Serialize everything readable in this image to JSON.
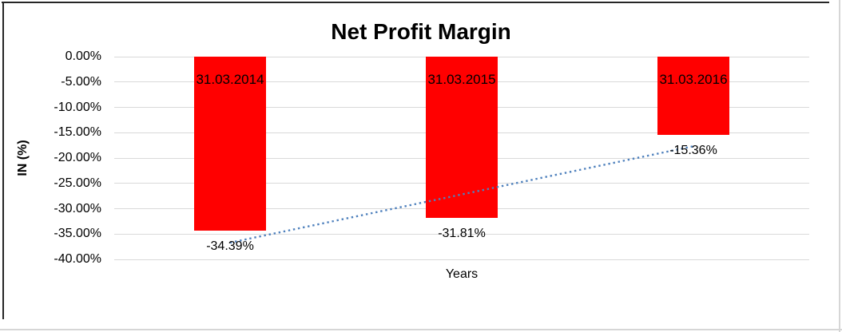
{
  "chart_data": {
    "type": "bar",
    "title": "Net Profit Margin",
    "xlabel": "Years",
    "ylabel": "IN (%)",
    "categories": [
      "31.03.2014",
      "31.03.2015",
      "31.03.2016"
    ],
    "series": [
      {
        "name": "Net Profit Margin",
        "values": [
          -34.39,
          -31.81,
          -15.36
        ]
      }
    ],
    "value_labels": [
      "-34.39%",
      "-31.81%",
      "-15.36%"
    ],
    "yticks": [
      0,
      -5,
      -10,
      -15,
      -20,
      -25,
      -30,
      -35,
      -40
    ],
    "ytick_labels": [
      "0.00%",
      "-5.00%",
      "-10.00%",
      "-15.00%",
      "-20.00%",
      "-25.00%",
      "-30.00%",
      "-35.00%",
      "-40.00%"
    ],
    "ylim": [
      -40,
      0
    ],
    "grid": true,
    "legend": "none",
    "colors": {
      "bar": "#FF0000",
      "trendline": "#4F81BD",
      "gridline": "#D9D9D9",
      "text": "#000000"
    },
    "trendline": {
      "type": "linear",
      "style": "dotted",
      "endpoint_values": [
        -36.7,
        -17.67
      ]
    }
  }
}
